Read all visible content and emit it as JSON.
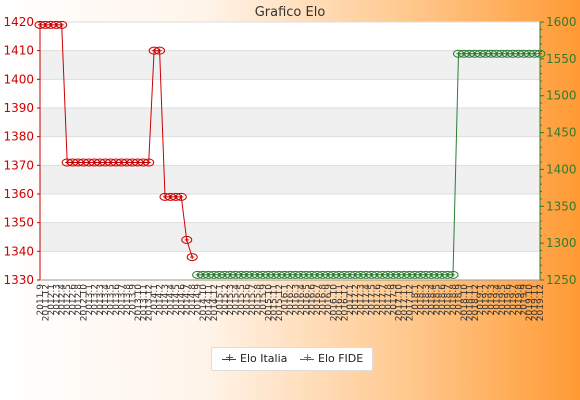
{
  "chart_data": {
    "type": "line",
    "title": "Grafico Elo",
    "x_tick_labels": [
      "2011.9",
      "2011.12",
      "2012.1",
      "2012.3",
      "2012.4",
      "2012.5",
      "2012.6",
      "2012.8",
      "2012.10",
      "2013.1",
      "2013.2",
      "2013.3",
      "2013.4",
      "2013.5",
      "2013.6",
      "2013.7",
      "2013.8",
      "2013.9",
      "2013.10",
      "2013.11",
      "2013.12",
      "2014.1",
      "2014.2",
      "2014.3",
      "2014.4",
      "2014.5",
      "2014.6",
      "2014.7",
      "2014.8",
      "2014.9",
      "2014.10",
      "2014.11",
      "2014.12",
      "2015.1",
      "2015.2",
      "2015.3",
      "2015.4",
      "2015.5",
      "2015.6",
      "2015.7",
      "2015.8",
      "2015.9",
      "2015.10",
      "2015.11",
      "2015.12",
      "2016.1",
      "2016.2",
      "2016.3",
      "2016.4",
      "2016.5",
      "2016.6",
      "2016.7",
      "2016.8",
      "2016.9",
      "2016.10",
      "2016.11",
      "2016.12",
      "2017.1",
      "2017.2",
      "2017.3",
      "2017.4",
      "2017.5",
      "2017.6",
      "2017.7",
      "2017.8",
      "2017.9",
      "2017.10",
      "2017.11",
      "2017.12",
      "2018.1",
      "2018.2",
      "2018.3",
      "2018.4",
      "2018.5",
      "2018.6",
      "2018.7",
      "2018.8",
      "2018.9",
      "2018.10",
      "2018.11",
      "2018.12",
      "2019.1",
      "2019.2",
      "2019.3",
      "2019.4",
      "2019.5",
      "2019.6",
      "2019.7",
      "2019.8",
      "2019.9",
      "2019.10",
      "2019.11",
      "2019.12"
    ],
    "y_left": {
      "min": 1330,
      "max": 1420,
      "step": 10
    },
    "y_right": {
      "min": 1250,
      "max": 1600,
      "step": 50
    },
    "legend_position": "bottom",
    "series": [
      {
        "name": "Elo Italia",
        "axis": "left",
        "color": "#cc0000",
        "values": [
          1419,
          1419,
          1419,
          1419,
          1419,
          1371,
          1371,
          1371,
          1371,
          1371,
          1371,
          1371,
          1371,
          1371,
          1371,
          1371,
          1371,
          1371,
          1371,
          1371,
          1371,
          1410,
          1410,
          1359,
          1359,
          1359,
          1359,
          1344,
          1338
        ]
      },
      {
        "name": "Elo FIDE",
        "axis": "right",
        "color": "#2e7d32",
        "values": [
          null,
          null,
          null,
          null,
          null,
          null,
          null,
          null,
          null,
          null,
          null,
          null,
          null,
          null,
          null,
          null,
          null,
          null,
          null,
          null,
          null,
          null,
          null,
          null,
          null,
          null,
          null,
          null,
          null,
          1257,
          1257,
          1257,
          1257,
          1257,
          1257,
          1257,
          1257,
          1257,
          1257,
          1257,
          1257,
          1257,
          1257,
          1257,
          1257,
          1257,
          1257,
          1257,
          1257,
          1257,
          1257,
          1257,
          1257,
          1257,
          1257,
          1257,
          1257,
          1257,
          1257,
          1257,
          1257,
          1257,
          1257,
          1257,
          1257,
          1257,
          1257,
          1257,
          1257,
          1257,
          1257,
          1257,
          1257,
          1257,
          1257,
          1257,
          1257,
          1557,
          1557,
          1557,
          1557,
          1557,
          1557,
          1557,
          1557,
          1557,
          1557,
          1557,
          1557,
          1557,
          1557,
          1557,
          1557
        ]
      }
    ]
  }
}
